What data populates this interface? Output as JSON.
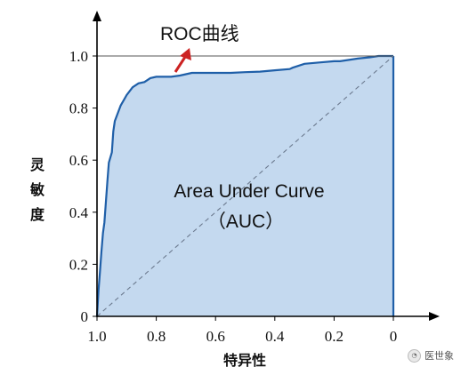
{
  "chart_data": {
    "type": "area",
    "ylabel": "灵敏度",
    "xlabel": "特异性",
    "x_ticks": [
      "1.0",
      "0.8",
      "0.6",
      "0.4",
      "0.2",
      "0"
    ],
    "y_ticks": [
      "0",
      "0.2",
      "0.4",
      "0.6",
      "0.8",
      "1.0"
    ],
    "xlim": [
      1.0,
      0
    ],
    "ylim": [
      0,
      1.0
    ],
    "grid": false,
    "series": [
      {
        "name": "ROC曲线",
        "x": [
          1.0,
          0.995,
          0.99,
          0.985,
          0.98,
          0.975,
          0.97,
          0.965,
          0.96,
          0.95,
          0.945,
          0.94,
          0.93,
          0.92,
          0.91,
          0.9,
          0.88,
          0.86,
          0.84,
          0.82,
          0.8,
          0.78,
          0.75,
          0.72,
          0.7,
          0.68,
          0.64,
          0.6,
          0.55,
          0.5,
          0.45,
          0.4,
          0.35,
          0.34,
          0.3,
          0.25,
          0.2,
          0.18,
          0.15,
          0.12,
          0.08,
          0.05,
          0.02,
          0.0
        ],
        "y": [
          0.0,
          0.1,
          0.17,
          0.25,
          0.32,
          0.36,
          0.44,
          0.52,
          0.59,
          0.63,
          0.71,
          0.75,
          0.78,
          0.81,
          0.83,
          0.85,
          0.88,
          0.895,
          0.9,
          0.915,
          0.92,
          0.92,
          0.92,
          0.925,
          0.93,
          0.935,
          0.935,
          0.935,
          0.935,
          0.938,
          0.94,
          0.945,
          0.95,
          0.955,
          0.97,
          0.975,
          0.98,
          0.98,
          0.985,
          0.99,
          0.995,
          1.0,
          1.0,
          1.0
        ],
        "color": "#1f5fa8",
        "fill": "#c4d9ef"
      }
    ],
    "reference_line": {
      "x": [
        1.0,
        0
      ],
      "y": [
        0,
        1.0
      ],
      "style": "dashed",
      "color": "#6c7a8f"
    },
    "annotations": {
      "roc_label": "ROC曲线",
      "auc_line1": "Area Under Curve",
      "auc_line2": "（AUC）",
      "arrow_color": "#cc2222"
    }
  },
  "watermark": {
    "text": "医世象"
  }
}
